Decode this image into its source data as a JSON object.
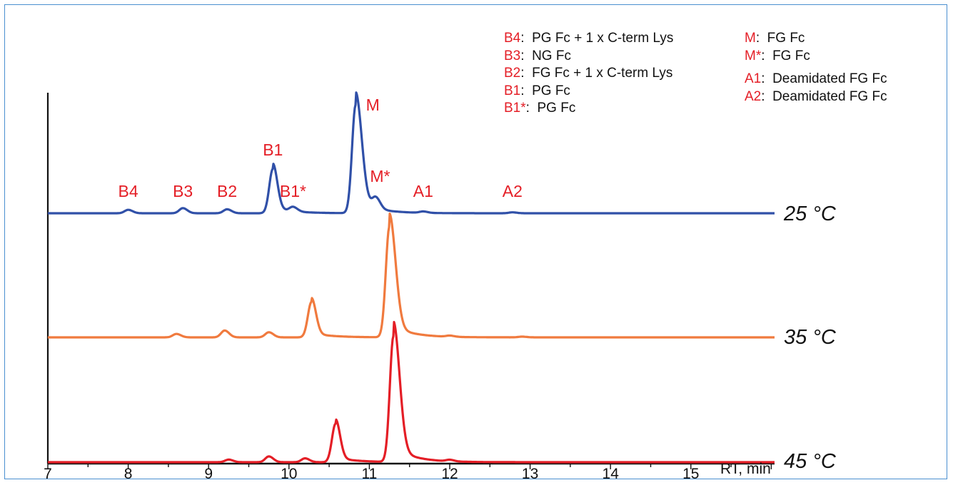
{
  "chart_data": {
    "type": "line",
    "title": "",
    "xlabel": "RT, min",
    "ylabel": "",
    "xlim": [
      7,
      16.4
    ],
    "x_ticks": [
      7,
      8,
      9,
      10,
      11,
      12,
      13,
      14,
      15
    ],
    "grid": false,
    "legend_position": "top-right",
    "series": [
      {
        "name": "25 °C",
        "color": "#3050a8",
        "peaks": [
          {
            "label": "B4",
            "rt": 8.0,
            "height": 0.03
          },
          {
            "label": "B3",
            "rt": 8.68,
            "height": 0.045
          },
          {
            "label": "B2",
            "rt": 9.23,
            "height": 0.035
          },
          {
            "label": "B1",
            "rt": 9.8,
            "height": 0.39
          },
          {
            "label": "B1*",
            "rt": 10.05,
            "height": 0.04
          },
          {
            "label": "M",
            "rt": 10.83,
            "height": 0.95
          },
          {
            "label": "M*",
            "rt": 11.08,
            "height": 0.1
          },
          {
            "label": "A1",
            "rt": 11.67,
            "height": 0.012
          },
          {
            "label": "A2",
            "rt": 12.78,
            "height": 0.008
          }
        ]
      },
      {
        "name": "35 °C",
        "color": "#f07a3e",
        "peaks": [
          {
            "rt": 8.6,
            "height": 0.03
          },
          {
            "rt": 9.2,
            "height": 0.06
          },
          {
            "rt": 9.75,
            "height": 0.045
          },
          {
            "rt": 10.28,
            "height": 0.31
          },
          {
            "rt": 11.25,
            "height": 0.97
          },
          {
            "rt": 12.0,
            "height": 0.01
          },
          {
            "rt": 12.9,
            "height": 0.006
          }
        ]
      },
      {
        "name": "45 °C",
        "color": "#e41e26",
        "peaks": [
          {
            "rt": 9.25,
            "height": 0.02
          },
          {
            "rt": 9.75,
            "height": 0.045
          },
          {
            "rt": 10.2,
            "height": 0.03
          },
          {
            "rt": 10.58,
            "height": 0.3
          },
          {
            "rt": 11.3,
            "height": 0.98
          },
          {
            "rt": 12.0,
            "height": 0.012
          }
        ]
      }
    ],
    "legend": [
      {
        "code": "B4",
        "description": "PG Fc + 1 x C-term Lys"
      },
      {
        "code": "B3",
        "description": "NG Fc"
      },
      {
        "code": "B2",
        "description": "FG Fc + 1 x C-term Lys"
      },
      {
        "code": "B1",
        "description": "PG Fc"
      },
      {
        "code": "B1*",
        "description": "PG Fc"
      },
      {
        "code": "M",
        "description": "FG Fc"
      },
      {
        "code": "M*",
        "description": "FG Fc"
      },
      {
        "code": "A1",
        "description": "Deamidated FG Fc"
      },
      {
        "code": "A2",
        "description": "Deamidated FG Fc"
      }
    ]
  },
  "colors": {
    "frame": "#4a8fd0",
    "label_red": "#e41e26",
    "axis": "#111111"
  }
}
